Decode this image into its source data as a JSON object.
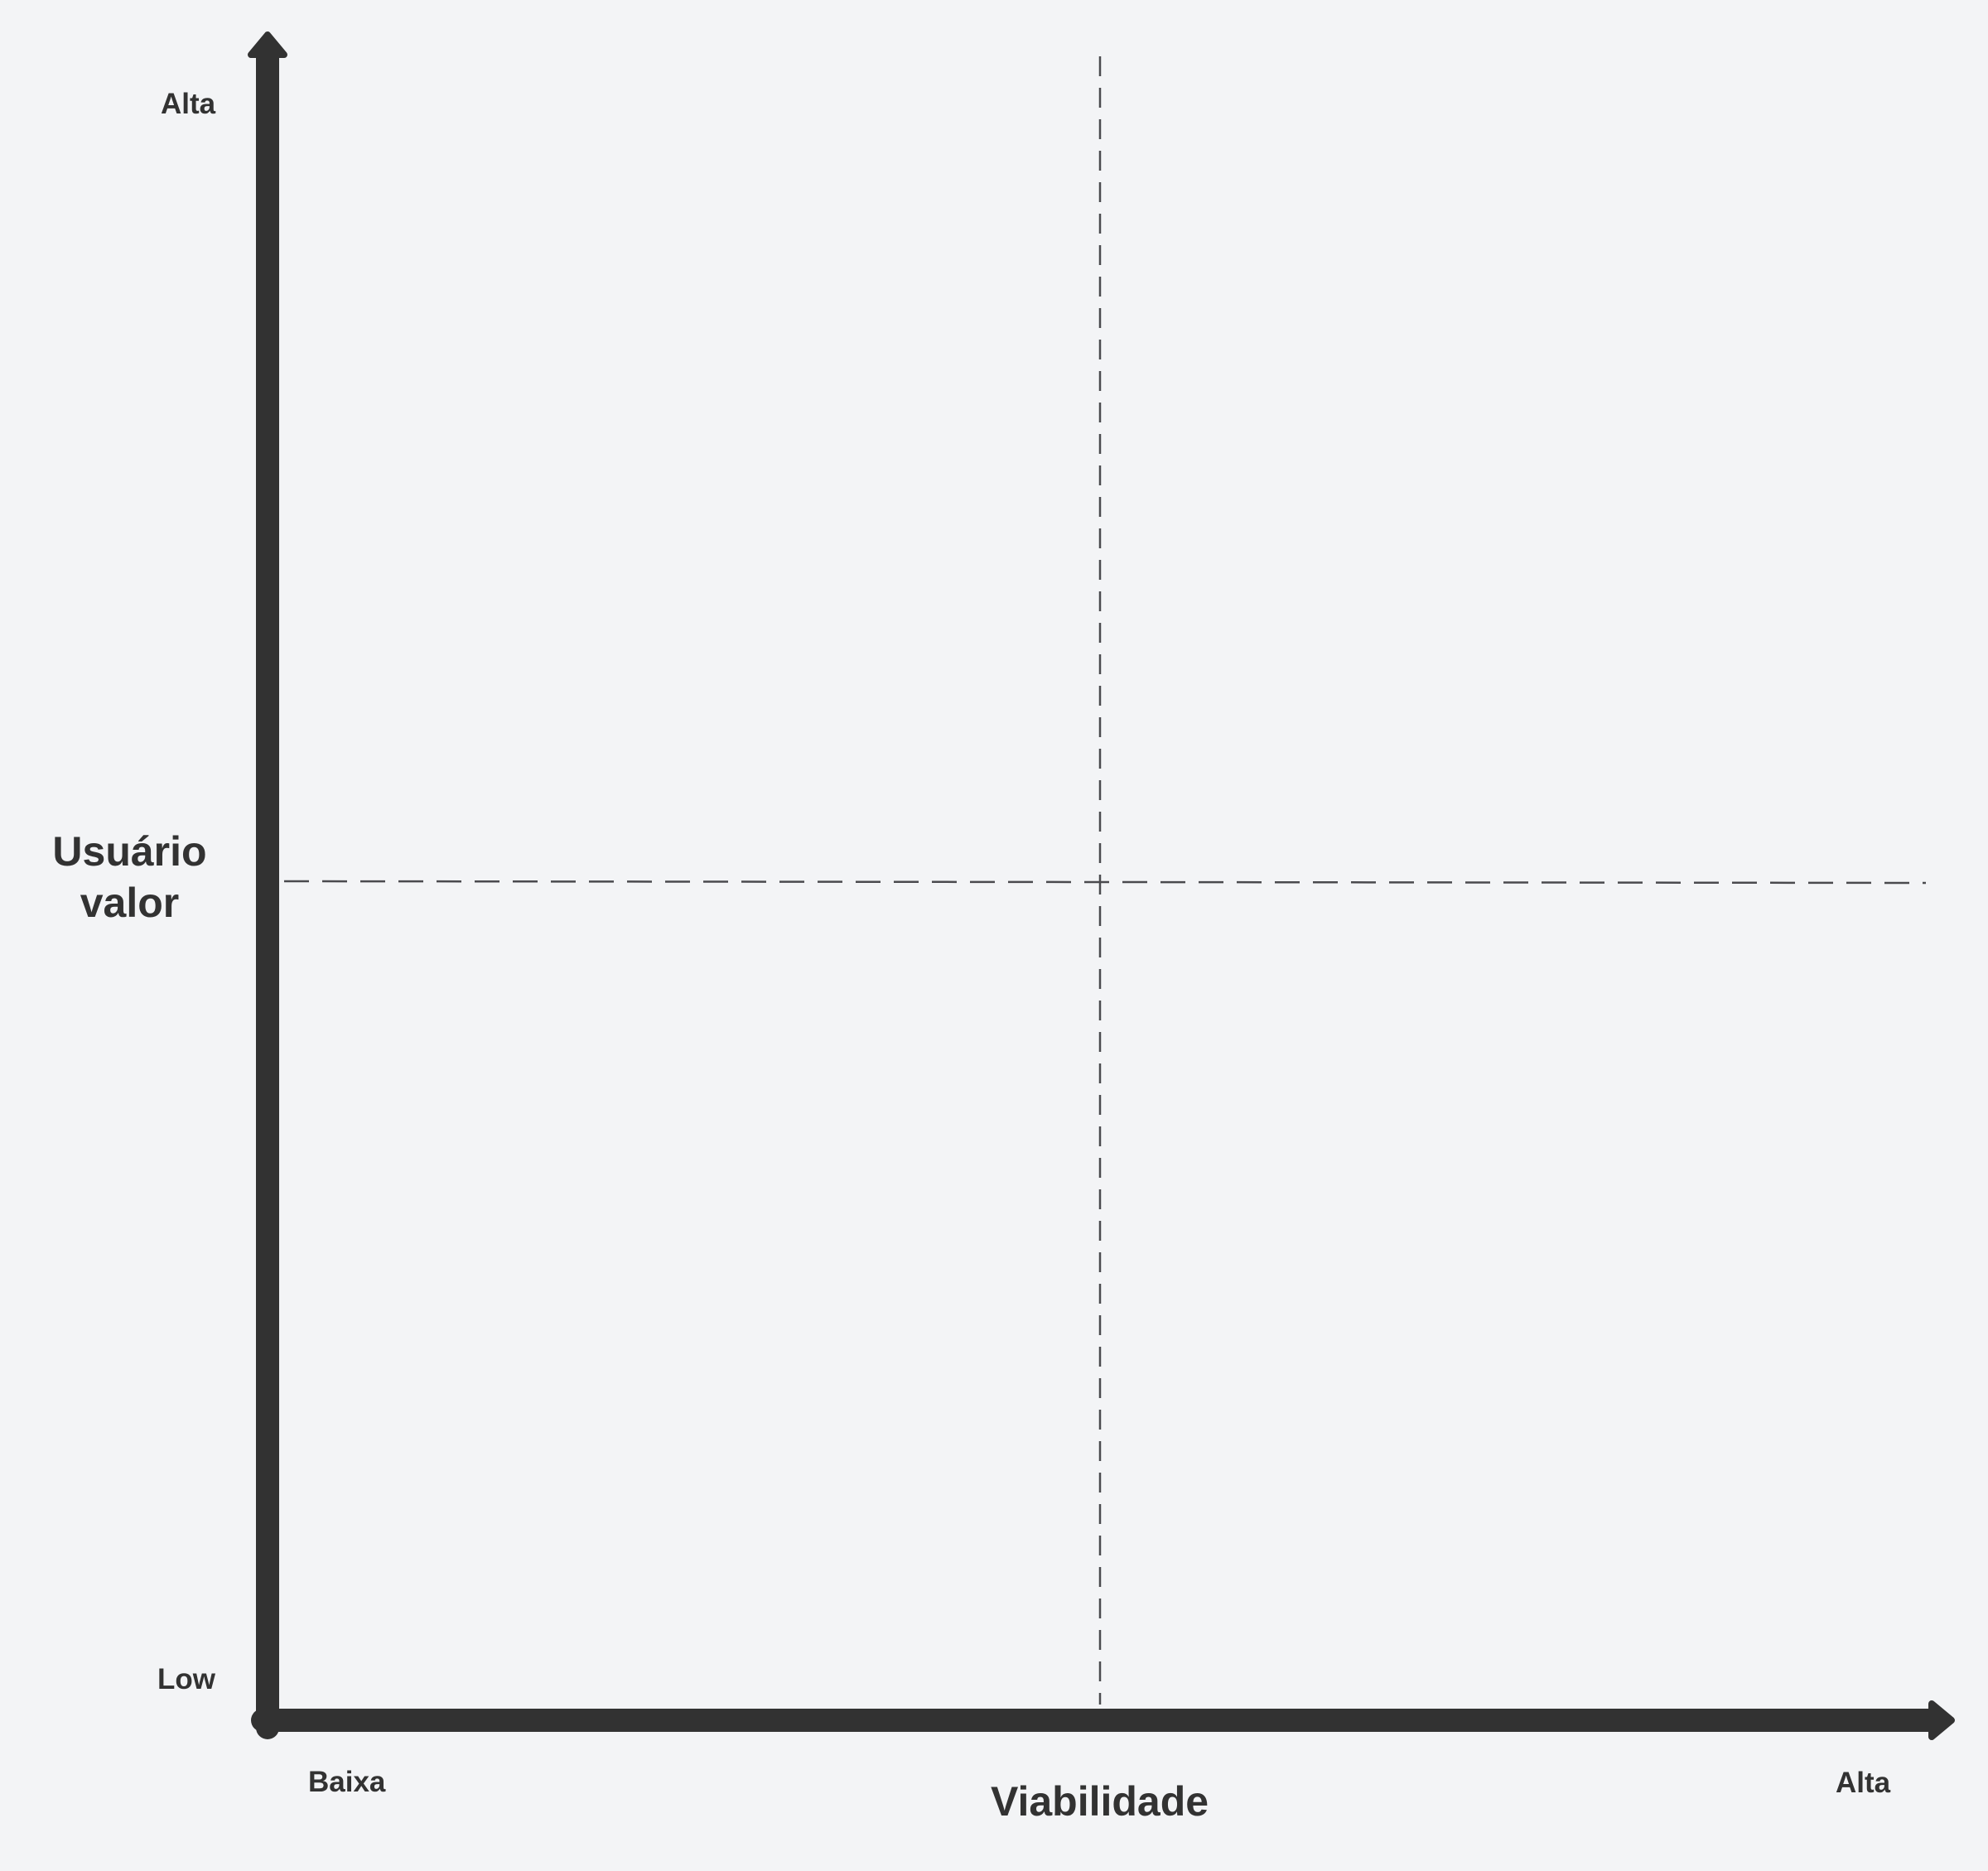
{
  "diagram": {
    "type": "quadrant-matrix",
    "x_axis": {
      "title": "Viabilidade",
      "low_label": "Baixa",
      "high_label": "Alta"
    },
    "y_axis": {
      "title_line1": "Usuário",
      "title_line2": "valor",
      "low_label": "Low",
      "high_label": "Alta"
    },
    "colors": {
      "background": "#f3f4f6",
      "axis": "#323232",
      "divider": "#4a4a4e",
      "text": "#323232"
    }
  }
}
